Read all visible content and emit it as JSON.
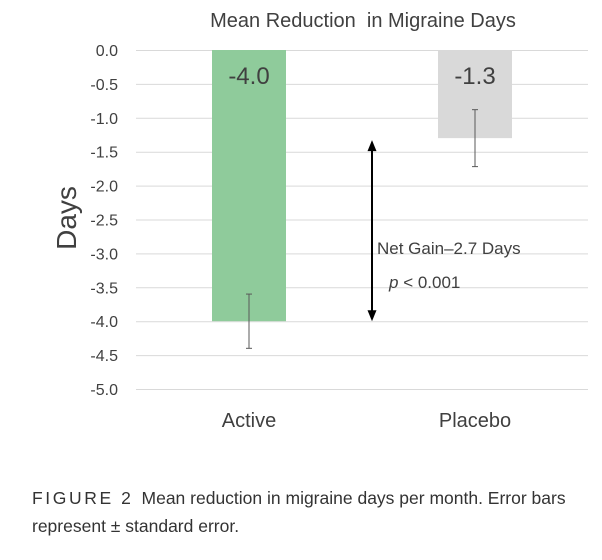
{
  "chart_data": {
    "type": "bar",
    "title": "Mean Reduction  in Migraine Days",
    "ylabel": "Days",
    "xlabel": "",
    "categories": [
      "Active",
      "Placebo"
    ],
    "values": [
      -4.0,
      -1.3
    ],
    "value_labels": [
      "-4.0",
      "-1.3"
    ],
    "error_bars": [
      {
        "low": -4.4,
        "high": -3.6
      },
      {
        "low": -1.72,
        "high": -0.88
      }
    ],
    "bar_colors": [
      "#8fcb9b",
      "#d9d9d9"
    ],
    "ylim": [
      -5.0,
      0.0
    ],
    "y_ticks": [
      0.0,
      -0.5,
      -1.0,
      -1.5,
      -2.0,
      -2.5,
      -3.0,
      -3.5,
      -4.0,
      -4.5,
      -5.0
    ],
    "y_tick_labels": [
      "0.0",
      "-0.5",
      "-1.0",
      "-1.5",
      "-2.0",
      "-2.5",
      "-3.0",
      "-3.5",
      "-4.0",
      "-4.5",
      "-5.0"
    ],
    "grid": true,
    "annotation": {
      "arrow_from": -1.3,
      "arrow_to": -4.0,
      "line1": "Net Gain–2.7 Days",
      "line2_italic": "p",
      "line2_rest": " < 0.001"
    }
  },
  "caption": {
    "label": "FIGURE 2",
    "text": "Mean reduction in migraine days per month. Error bars represent ± standard error."
  }
}
